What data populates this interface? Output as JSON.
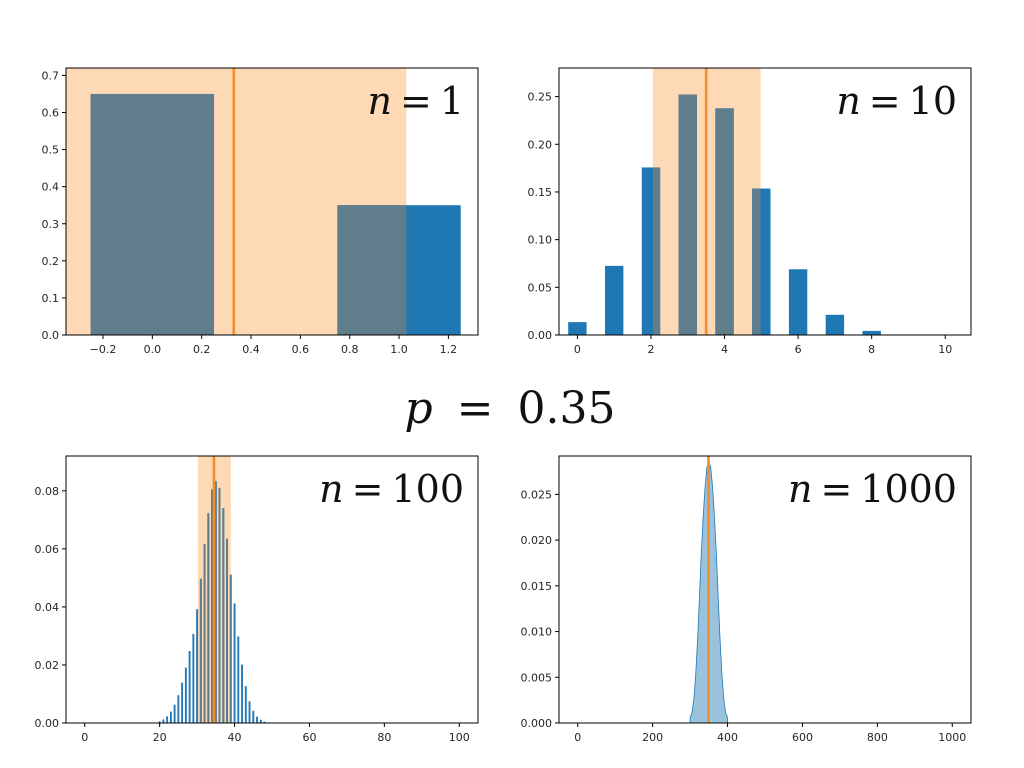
{
  "figure": {
    "suptitle": {
      "symbol": "p",
      "equals": "=",
      "value": "0.35"
    },
    "colors": {
      "bar": "#1f77b4",
      "band": "#fdd9b5",
      "mean_line": "#f28e2b",
      "overlap": "#5f7d8a"
    }
  },
  "chart_data": [
    {
      "type": "bar",
      "label": {
        "symbol": "n",
        "equals": "=",
        "value": "1"
      },
      "n": 1,
      "p": 0.35,
      "xlim": [
        -0.35,
        1.32
      ],
      "ylim": [
        0,
        0.72
      ],
      "xticks": [
        -0.2,
        0.0,
        0.2,
        0.4,
        0.6,
        0.8,
        1.0,
        1.2
      ],
      "xtick_labels": [
        "−0.2",
        "0.0",
        "0.2",
        "0.4",
        "0.6",
        "0.8",
        "1.0",
        "1.2"
      ],
      "yticks": [
        0,
        0.1,
        0.2,
        0.3,
        0.4,
        0.5,
        0.6,
        0.7
      ],
      "ytick_labels": [
        "0.0",
        "0.1",
        "0.2",
        "0.3",
        "0.4",
        "0.5",
        "0.6",
        "0.7"
      ],
      "bar_width": 0.5,
      "x": [
        0,
        1
      ],
      "values": [
        0.65,
        0.35
      ],
      "band": {
        "x": [
          -0.35,
          1.03
        ],
        "y": [
          0,
          0.72
        ]
      },
      "mean_line": 0.33,
      "grid": false
    },
    {
      "type": "bar",
      "label": {
        "symbol": "n",
        "equals": "=",
        "value": "10"
      },
      "n": 10,
      "p": 0.35,
      "xlim": [
        -0.5,
        10.7
      ],
      "ylim": [
        0,
        0.28
      ],
      "xticks": [
        0,
        2,
        4,
        6,
        8,
        10
      ],
      "xtick_labels": [
        "0",
        "2",
        "4",
        "6",
        "8",
        "10"
      ],
      "yticks": [
        0,
        0.05,
        0.1,
        0.15,
        0.2,
        0.25
      ],
      "ytick_labels": [
        "0.00",
        "0.05",
        "0.10",
        "0.15",
        "0.20",
        "0.25"
      ],
      "bar_width": 0.5,
      "x": [
        0,
        1,
        2,
        3,
        4,
        5,
        6,
        7,
        8,
        9,
        10
      ],
      "values": [
        0.0135,
        0.0725,
        0.1757,
        0.2522,
        0.2377,
        0.1536,
        0.0689,
        0.0212,
        0.0043,
        0.0005,
        3e-05
      ],
      "band": {
        "x": [
          2.05,
          4.98
        ],
        "y": [
          0,
          0.28
        ]
      },
      "mean_line": 3.5,
      "grid": false
    },
    {
      "type": "bar",
      "label": {
        "symbol": "n",
        "equals": "=",
        "value": "100"
      },
      "n": 100,
      "p": 0.35,
      "xlim": [
        -5,
        105
      ],
      "ylim": [
        0,
        0.092
      ],
      "xticks": [
        0,
        20,
        40,
        60,
        80,
        100
      ],
      "xtick_labels": [
        "0",
        "20",
        "40",
        "60",
        "80",
        "100"
      ],
      "yticks": [
        0,
        0.02,
        0.04,
        0.06,
        0.08
      ],
      "ytick_labels": [
        "0.00",
        "0.02",
        "0.04",
        "0.06",
        "0.08"
      ],
      "bar_width": 0.5,
      "x": [
        20,
        21,
        22,
        23,
        24,
        25,
        26,
        27,
        28,
        29,
        30,
        31,
        32,
        33,
        34,
        35,
        36,
        37,
        38,
        39,
        40,
        41,
        42,
        43,
        44,
        45,
        46,
        47,
        48,
        49,
        50
      ],
      "values": [
        0.0006,
        0.0012,
        0.0023,
        0.0039,
        0.0063,
        0.0096,
        0.0139,
        0.0191,
        0.0248,
        0.0307,
        0.0392,
        0.0497,
        0.0616,
        0.0723,
        0.0805,
        0.0834,
        0.081,
        0.074,
        0.0635,
        0.0511,
        0.0412,
        0.0298,
        0.0201,
        0.0127,
        0.0075,
        0.0042,
        0.0022,
        0.0011,
        0.0005,
        0.0002,
        0.0001
      ],
      "band": {
        "x": [
          30.2,
          39.0
        ],
        "y": [
          0,
          0.092
        ]
      },
      "mean_line": 34.5,
      "grid": false
    },
    {
      "type": "area",
      "label": {
        "symbol": "n",
        "equals": "=",
        "value": "1000"
      },
      "n": 1000,
      "p": 0.35,
      "xlim": [
        -50,
        1050
      ],
      "ylim": [
        0,
        0.0292
      ],
      "xticks": [
        0,
        200,
        400,
        600,
        800,
        1000
      ],
      "xtick_labels": [
        "0",
        "200",
        "400",
        "600",
        "800",
        "1000"
      ],
      "yticks": [
        0,
        0.005,
        0.01,
        0.015,
        0.02,
        0.025
      ],
      "ytick_labels": [
        "0.000",
        "0.005",
        "0.010",
        "0.015",
        "0.020",
        "0.025"
      ],
      "x": [
        300,
        305,
        310,
        315,
        320,
        325,
        330,
        335,
        340,
        345,
        350,
        355,
        360,
        365,
        370,
        375,
        380,
        385,
        390,
        395,
        400
      ],
      "values": [
        0.0006,
        0.0011,
        0.0026,
        0.0053,
        0.0091,
        0.0138,
        0.0186,
        0.0226,
        0.0258,
        0.028,
        0.0285,
        0.028,
        0.0258,
        0.0226,
        0.0186,
        0.0138,
        0.0091,
        0.0053,
        0.0026,
        0.0011,
        0.0006
      ],
      "band": {
        "x": [
          347,
          353
        ],
        "y": [
          0,
          0.0292
        ]
      },
      "mean_line": 349,
      "grid": false
    }
  ]
}
